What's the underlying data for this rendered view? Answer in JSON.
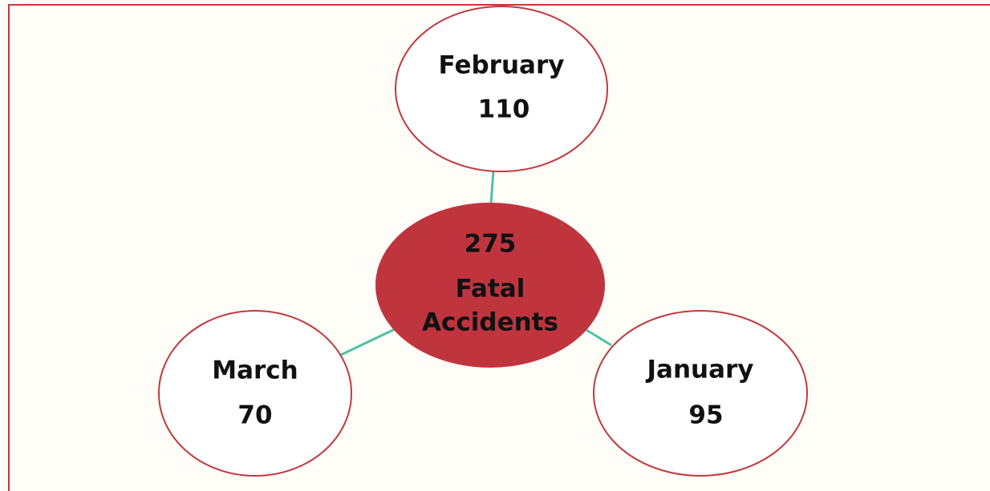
{
  "center": {
    "value": 275,
    "label_lines": [
      "Fatal",
      "Accidents"
    ]
  },
  "nodes": [
    {
      "label": "February",
      "value": 110
    },
    {
      "label": "March",
      "value": 70
    },
    {
      "label": "January",
      "value": 95
    }
  ]
}
